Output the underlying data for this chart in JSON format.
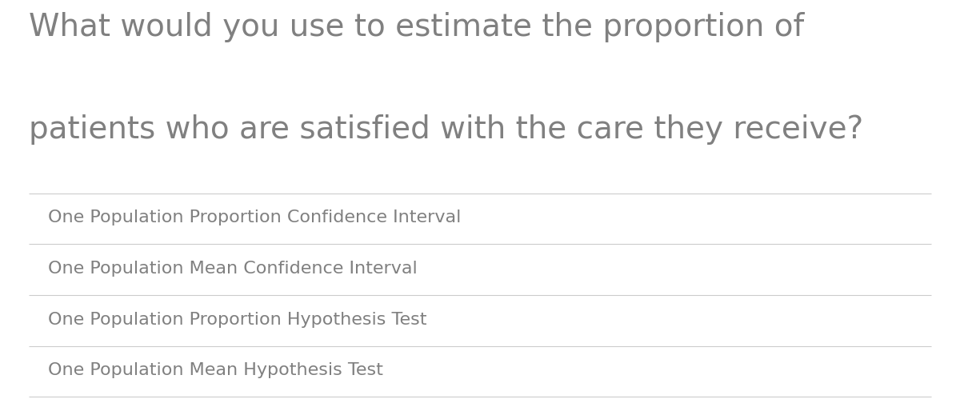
{
  "question_line1": "What would you use to estimate the proportion of",
  "question_line2": "patients who are satisfied with the care they receive?",
  "options": [
    "One Population Proportion Confidence Interval",
    "One Population Mean Confidence Interval",
    "One Population Proportion Hypothesis Test",
    "One Population Mean Hypothesis Test"
  ],
  "background_color": "#ffffff",
  "question_color": "#808080",
  "option_color": "#808080",
  "line_color": "#cccccc",
  "question_fontsize": 28,
  "option_fontsize": 16
}
